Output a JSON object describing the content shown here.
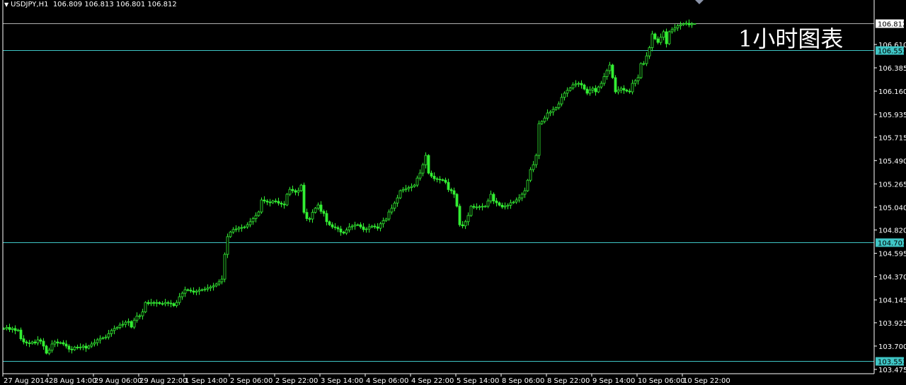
{
  "header": {
    "dropdown_icon": "triangle-down-icon",
    "symbol": "USDJPY,H1",
    "ohlc_text": "106.809 106.813 106.801 106.812"
  },
  "watermark": "1小时图表",
  "colors": {
    "background": "#000000",
    "candle": "#33ee33",
    "level_line": "#3fc6c6",
    "bid_line": "#b0b0b0",
    "axis": "#ffffff"
  },
  "chart_data": {
    "type": "candlestick",
    "symbol": "USDJPY",
    "timeframe": "H1",
    "last_bar": {
      "open": 106.809,
      "high": 106.813,
      "low": 106.801,
      "close": 106.812
    },
    "ylim": [
      103.475,
      106.835
    ],
    "y_ticks": [
      "106.610",
      "106.385",
      "106.160",
      "105.935",
      "105.715",
      "105.490",
      "105.265",
      "105.040",
      "104.820",
      "104.595",
      "104.370",
      "104.145",
      "103.925",
      "103.700",
      "103.475"
    ],
    "x_ticks": [
      {
        "bar": 0,
        "label": "27 Aug 2014"
      },
      {
        "bar": 16,
        "label": "28 Aug 14:00"
      },
      {
        "bar": 32,
        "label": "29 Aug 06:00"
      },
      {
        "bar": 48,
        "label": "29 Aug 22:00"
      },
      {
        "bar": 64,
        "label": "1 Sep 14:00"
      },
      {
        "bar": 80,
        "label": "2 Sep 06:00"
      },
      {
        "bar": 96,
        "label": "2 Sep 22:00"
      },
      {
        "bar": 112,
        "label": "3 Sep 14:00"
      },
      {
        "bar": 128,
        "label": "4 Sep 06:00"
      },
      {
        "bar": 144,
        "label": "4 Sep 22:00"
      },
      {
        "bar": 160,
        "label": "5 Sep 14:00"
      },
      {
        "bar": 176,
        "label": "8 Sep 06:00"
      },
      {
        "bar": 192,
        "label": "8 Sep 22:00"
      },
      {
        "bar": 208,
        "label": "9 Sep 14:00"
      },
      {
        "bar": 224,
        "label": "10 Sep 06:00"
      },
      {
        "bar": 240,
        "label": "10 Sep 22:00"
      }
    ],
    "price_lines": [
      {
        "price": "106.812",
        "kind": "bid"
      },
      {
        "price": "106.553",
        "kind": "level"
      },
      {
        "price": "104.703",
        "kind": "level"
      },
      {
        "price": "103.553",
        "kind": "level"
      }
    ],
    "close": [
      103.869,
      103.88,
      103.86,
      103.87,
      103.85,
      103.855,
      103.77,
      103.74,
      103.73,
      103.726,
      103.74,
      103.73,
      103.76,
      103.747,
      103.7,
      103.631,
      103.66,
      103.72,
      103.74,
      103.73,
      103.733,
      103.72,
      103.7,
      103.67,
      103.665,
      103.69,
      103.685,
      103.69,
      103.7,
      103.68,
      103.7,
      103.72,
      103.733,
      103.76,
      103.774,
      103.78,
      103.787,
      103.82,
      103.85,
      103.869,
      103.88,
      103.903,
      103.91,
      103.93,
      103.937,
      103.883,
      103.95,
      103.99,
      103.992,
      104.03,
      104.121,
      104.11,
      104.12,
      104.115,
      104.12,
      104.11,
      104.108,
      104.12,
      104.115,
      104.11,
      104.09,
      104.121,
      104.176,
      104.21,
      104.244,
      104.24,
      104.231,
      104.22,
      104.23,
      104.24,
      104.244,
      104.25,
      104.26,
      104.271,
      104.28,
      104.299,
      104.32,
      104.346,
      104.585,
      104.756,
      104.8,
      104.824,
      104.83,
      104.84,
      104.844,
      104.85,
      104.871,
      104.9,
      104.93,
      104.96,
      104.994,
      105.11,
      105.1,
      105.09,
      105.083,
      105.1,
      105.096,
      105.08,
      105.07,
      105.062,
      105.165,
      105.212,
      105.2,
      105.185,
      105.2,
      105.253,
      104.99,
      104.93,
      104.926,
      104.99,
      105.03,
      105.062,
      105.0,
      104.98,
      104.9,
      104.871,
      104.85,
      104.844,
      104.83,
      104.8,
      104.79,
      104.82,
      104.85,
      104.858,
      104.87,
      104.871,
      104.85,
      104.824,
      104.83,
      104.85,
      104.858,
      104.85,
      104.837,
      104.88,
      104.91,
      104.926,
      104.994,
      105.03,
      105.08,
      105.13,
      105.199,
      105.21,
      105.219,
      105.23,
      105.24,
      105.253,
      105.321,
      105.369,
      105.45,
      105.54,
      105.369,
      105.34,
      105.315,
      105.31,
      105.305,
      105.301,
      105.28,
      105.21,
      105.199,
      105.165,
      105.05,
      104.87,
      104.86,
      104.9,
      104.96,
      105.049,
      105.04,
      105.042,
      105.045,
      105.049,
      105.049,
      105.1,
      105.165,
      105.1,
      105.083,
      105.06,
      105.042,
      105.05,
      105.06,
      105.083,
      105.09,
      105.11,
      105.13,
      105.165,
      105.199,
      105.3,
      105.403,
      105.45,
      105.54,
      105.846,
      105.867,
      105.9,
      105.949,
      105.96,
      105.983,
      106.0,
      106.037,
      106.1,
      106.14,
      106.167,
      106.19,
      106.221,
      106.23,
      106.235,
      106.22,
      106.18,
      106.14,
      106.17,
      106.187,
      106.153,
      106.2,
      106.235,
      106.3,
      106.358,
      106.412,
      106.29,
      106.153,
      106.17,
      106.187,
      106.17,
      106.16,
      106.153,
      106.235,
      106.26,
      106.29,
      106.426,
      106.426,
      106.5,
      106.58,
      106.712,
      106.664,
      106.63,
      106.68,
      106.733,
      106.617,
      106.733,
      106.753,
      106.77,
      106.79,
      106.801,
      106.81,
      106.815,
      106.8,
      106.809,
      106.812
    ]
  }
}
